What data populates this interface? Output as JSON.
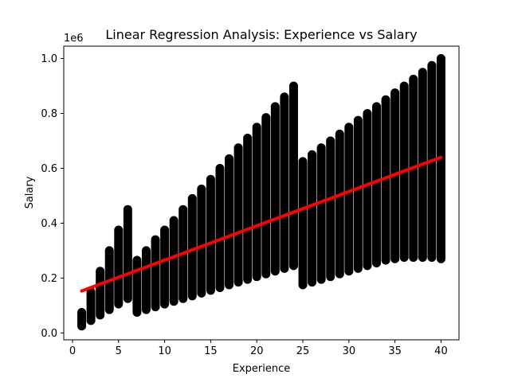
{
  "chart_data": {
    "type": "scatter",
    "title": "Linear Regression Analysis: Experience vs Salary",
    "xlabel": "Experience",
    "ylabel": "Salary",
    "y_offset_label": "1e6",
    "xlim": [
      -0.95,
      41.95
    ],
    "ylim": [
      -0.025,
      1.045
    ],
    "y_scale": 1000000,
    "xticks": [
      0,
      5,
      10,
      15,
      20,
      25,
      30,
      35,
      40
    ],
    "yticks": [
      0.0,
      0.2,
      0.4,
      0.6,
      0.8,
      1.0
    ],
    "grid": false,
    "series": [
      {
        "kind": "scatter",
        "color": "#000000",
        "x": [
          1,
          2,
          3,
          4,
          5,
          6,
          7,
          8,
          9,
          10,
          11,
          12,
          13,
          14,
          15,
          16,
          17,
          18,
          19,
          20,
          21,
          22,
          23,
          24,
          25,
          26,
          27,
          28,
          29,
          30,
          31,
          32,
          33,
          34,
          35,
          36,
          37,
          38,
          39,
          40
        ],
        "y_min": [
          0.025,
          0.045,
          0.065,
          0.085,
          0.105,
          0.125,
          0.075,
          0.085,
          0.095,
          0.105,
          0.115,
          0.125,
          0.135,
          0.145,
          0.155,
          0.165,
          0.175,
          0.185,
          0.195,
          0.205,
          0.215,
          0.225,
          0.235,
          0.245,
          0.175,
          0.185,
          0.195,
          0.205,
          0.215,
          0.225,
          0.235,
          0.245,
          0.255,
          0.265,
          0.27,
          0.275,
          0.275,
          0.275,
          0.275,
          0.27
        ],
        "y_max": [
          0.075,
          0.15,
          0.225,
          0.3,
          0.375,
          0.45,
          0.265,
          0.3,
          0.34,
          0.375,
          0.41,
          0.45,
          0.49,
          0.525,
          0.56,
          0.6,
          0.635,
          0.675,
          0.71,
          0.75,
          0.785,
          0.825,
          0.86,
          0.9,
          0.625,
          0.65,
          0.675,
          0.7,
          0.725,
          0.75,
          0.775,
          0.8,
          0.825,
          0.85,
          0.875,
          0.9,
          0.925,
          0.95,
          0.975,
          1.0
        ]
      },
      {
        "kind": "line",
        "color": "#ff0000",
        "x": [
          1,
          40
        ],
        "y": [
          0.153,
          0.64
        ]
      }
    ]
  }
}
